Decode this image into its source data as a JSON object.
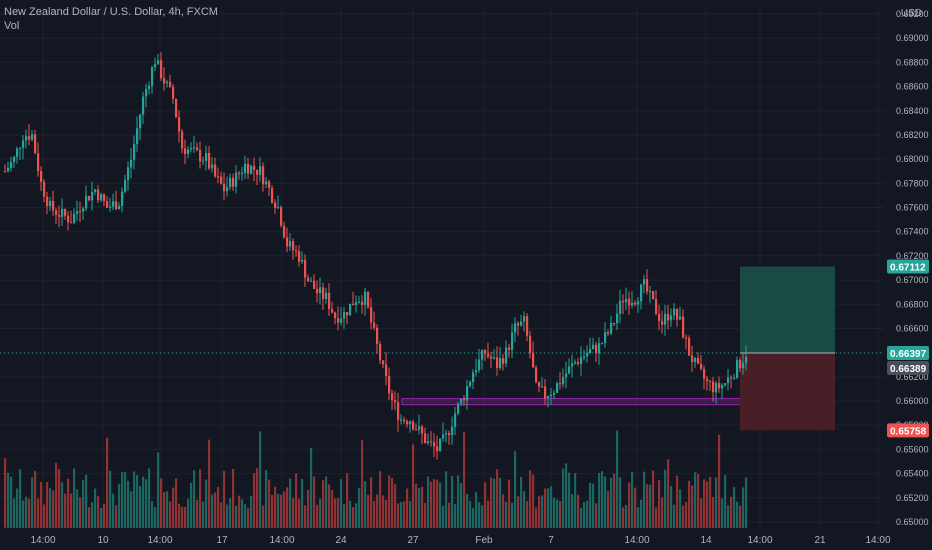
{
  "header": {
    "symbol_title": "New Zealand Dollar / U.S. Dollar, 4h, FXCM",
    "volume_label": "Vol",
    "currency": "USD"
  },
  "colors": {
    "background": "#131722",
    "grid": "#1e222d",
    "up": "#26a69a",
    "down": "#ef5350",
    "up_volume": "#1e7a70",
    "down_volume": "#b03a38",
    "zone": "#9c27b0",
    "profit_zone": "#1a4a44",
    "loss_zone": "#4a1e26",
    "last_price_tag": "#4a4f5c",
    "text": "#b2b5be"
  },
  "chart_data": {
    "type": "candlestick",
    "ylim": [
      0.65,
      0.692
    ],
    "y_ticks": [
      "0.65000",
      "0.65200",
      "0.65400",
      "0.65600",
      "0.65800",
      "0.66000",
      "0.66200",
      "0.66400",
      "0.66600",
      "0.66800",
      "0.67000",
      "0.67200",
      "0.67400",
      "0.67600",
      "0.67800",
      "0.68000",
      "0.68200",
      "0.68400",
      "0.68600",
      "0.68800",
      "0.69000",
      "0.69200"
    ],
    "x_tick_labels": [
      "14:00",
      "10",
      "14:00",
      "17",
      "14:00",
      "24",
      "27",
      "Feb",
      "7",
      "14:00",
      "14",
      "14:00",
      "21",
      "14:00"
    ],
    "price_path": [
      [
        0,
        0.679
      ],
      [
        3,
        0.68
      ],
      [
        6,
        0.682
      ],
      [
        9,
        0.682
      ],
      [
        12,
        0.678
      ],
      [
        15,
        0.676
      ],
      [
        18,
        0.6755
      ],
      [
        22,
        0.675
      ],
      [
        26,
        0.6765
      ],
      [
        30,
        0.6775
      ],
      [
        34,
        0.676
      ],
      [
        38,
        0.6765
      ],
      [
        42,
        0.68
      ],
      [
        46,
        0.685
      ],
      [
        50,
        0.6882
      ],
      [
        53,
        0.6865
      ],
      [
        56,
        0.685
      ],
      [
        59,
        0.681
      ],
      [
        63,
        0.6805
      ],
      [
        67,
        0.68
      ],
      [
        70,
        0.6785
      ],
      [
        73,
        0.6775
      ],
      [
        77,
        0.6785
      ],
      [
        80,
        0.6795
      ],
      [
        85,
        0.679
      ],
      [
        88,
        0.6775
      ],
      [
        91,
        0.676
      ],
      [
        94,
        0.673
      ],
      [
        98,
        0.672
      ],
      [
        101,
        0.67
      ],
      [
        104,
        0.669
      ],
      [
        107,
        0.6685
      ],
      [
        110,
        0.667
      ],
      [
        113,
        0.6672
      ],
      [
        117,
        0.6685
      ],
      [
        120,
        0.6685
      ],
      [
        123,
        0.6655
      ],
      [
        126,
        0.6625
      ],
      [
        129,
        0.66
      ],
      [
        132,
        0.6585
      ],
      [
        135,
        0.6585
      ],
      [
        138,
        0.6575
      ],
      [
        141,
        0.6565
      ],
      [
        144,
        0.656
      ],
      [
        147,
        0.657
      ],
      [
        150,
        0.659
      ],
      [
        153,
        0.6605
      ],
      [
        156,
        0.6625
      ],
      [
        160,
        0.664
      ],
      [
        164,
        0.663
      ],
      [
        167,
        0.664
      ],
      [
        170,
        0.666
      ],
      [
        173,
        0.6665
      ],
      [
        175,
        0.664
      ],
      [
        177,
        0.661
      ],
      [
        180,
        0.6605
      ],
      [
        183,
        0.661
      ],
      [
        186,
        0.662
      ],
      [
        190,
        0.6632
      ],
      [
        194,
        0.664
      ],
      [
        198,
        0.6645
      ],
      [
        202,
        0.666
      ],
      [
        206,
        0.6685
      ],
      [
        210,
        0.6685
      ],
      [
        213,
        0.6695
      ],
      [
        216,
        0.668
      ],
      [
        219,
        0.6665
      ],
      [
        222,
        0.6675
      ],
      [
        225,
        0.6665
      ],
      [
        228,
        0.664
      ],
      [
        231,
        0.6625
      ],
      [
        234,
        0.6615
      ],
      [
        237,
        0.661
      ],
      [
        240,
        0.6615
      ],
      [
        243,
        0.6625
      ],
      [
        246,
        0.6635
      ],
      [
        247,
        0.664
      ]
    ],
    "highlighted_levels": {
      "current_price": "0.66397",
      "last_close": "0.66389",
      "target_price": "0.67112",
      "stop_price": "0.65758"
    },
    "support_zone": {
      "low": 0.6597,
      "high": 0.6602
    },
    "position": {
      "entry": 0.66397,
      "target": 0.67112,
      "stop": 0.65758
    }
  }
}
